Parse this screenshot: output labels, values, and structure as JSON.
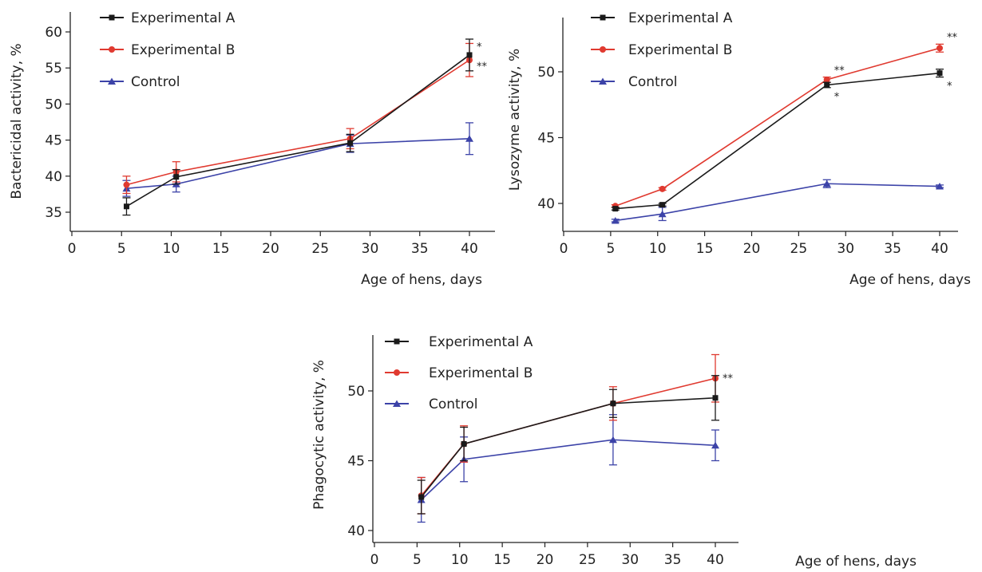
{
  "legend": {
    "series_a": "Experimental A",
    "series_b": "Experimental B",
    "series_c": "Control"
  },
  "colors": {
    "a": "#1a1a1a",
    "b": "#e03a30",
    "c": "#3c43a8"
  },
  "chart_data": [
    {
      "type": "line",
      "title": "",
      "xlabel": "Age of hens, days",
      "ylabel": "Bactericidal activity, %",
      "xlim": [
        0,
        45
      ],
      "ylim": [
        33,
        61
      ],
      "xticks": [
        0,
        5,
        10,
        15,
        20,
        25,
        30,
        35,
        40
      ],
      "yticks": [
        35,
        40,
        45,
        50,
        55,
        60
      ],
      "legend_position": "top-left",
      "x": [
        5.5,
        10.5,
        28,
        40
      ],
      "series": [
        {
          "name": "Experimental A",
          "color": "#1a1a1a",
          "marker": "square",
          "values": [
            35.8,
            39.9,
            44.6,
            56.8
          ],
          "errors": [
            1.2,
            1.0,
            1.2,
            2.2
          ]
        },
        {
          "name": "Experimental B",
          "color": "#e03a30",
          "marker": "circle",
          "values": [
            38.8,
            40.6,
            45.2,
            56.1
          ],
          "errors": [
            1.2,
            1.4,
            1.4,
            2.3
          ]
        },
        {
          "name": "Control",
          "color": "#3c43a8",
          "marker": "triangle",
          "values": [
            38.3,
            38.9,
            44.5,
            45.2
          ],
          "errors": [
            1.1,
            1.1,
            1.2,
            2.2
          ]
        }
      ],
      "annotations": [
        {
          "text": "*",
          "x": 40,
          "y": 57.9
        },
        {
          "text": "**",
          "x": 40,
          "y": 55.2
        }
      ]
    },
    {
      "type": "line",
      "title": "",
      "xlabel": "Age of hens, days",
      "ylabel": "Lysozyme activity, %",
      "xlim": [
        0,
        43
      ],
      "ylim": [
        38,
        54
      ],
      "xticks": [
        0,
        5,
        10,
        15,
        20,
        25,
        30,
        35,
        40
      ],
      "yticks": [
        40,
        45,
        50
      ],
      "legend_position": "top-left",
      "x": [
        5.5,
        10.5,
        28,
        40
      ],
      "series": [
        {
          "name": "Experimental A",
          "color": "#1a1a1a",
          "marker": "square",
          "values": [
            39.6,
            39.9,
            49.0,
            49.9
          ],
          "errors": [
            0.1,
            0.1,
            0.2,
            0.3
          ]
        },
        {
          "name": "Experimental B",
          "color": "#e03a30",
          "marker": "circle",
          "values": [
            39.8,
            41.1,
            49.4,
            51.8
          ],
          "errors": [
            0.1,
            0.1,
            0.2,
            0.3
          ]
        },
        {
          "name": "Control",
          "color": "#3c43a8",
          "marker": "triangle",
          "values": [
            38.7,
            39.2,
            41.5,
            41.3
          ],
          "errors": [
            0.1,
            0.5,
            0.3,
            0.1
          ]
        }
      ],
      "annotations": [
        {
          "text": "**",
          "x": 28,
          "y": 50.1
        },
        {
          "text": "*",
          "x": 28,
          "y": 48.1
        },
        {
          "text": "**",
          "x": 40,
          "y": 52.6
        },
        {
          "text": "*",
          "x": 40,
          "y": 48.9
        }
      ]
    },
    {
      "type": "line",
      "title": "",
      "xlabel": "Age of hens, days",
      "ylabel": "Phagocytic activity, %",
      "xlim": [
        0,
        45
      ],
      "ylim": [
        39.5,
        54
      ],
      "xticks": [
        0,
        5,
        10,
        15,
        20,
        25,
        30,
        35,
        40
      ],
      "yticks": [
        40,
        45,
        50
      ],
      "legend_position": "top-left",
      "x": [
        5.5,
        10.5,
        28,
        40
      ],
      "series": [
        {
          "name": "Experimental A",
          "color": "#1a1a1a",
          "marker": "square",
          "values": [
            42.4,
            46.2,
            49.1,
            49.5
          ],
          "errors": [
            1.2,
            1.2,
            1.0,
            1.6
          ]
        },
        {
          "name": "Experimental B",
          "color": "#e03a30",
          "marker": "circle",
          "values": [
            42.5,
            46.2,
            49.1,
            50.9
          ],
          "errors": [
            1.3,
            1.3,
            1.2,
            1.7
          ]
        },
        {
          "name": "Control",
          "color": "#3c43a8",
          "marker": "triangle",
          "values": [
            42.2,
            45.1,
            46.5,
            46.1
          ],
          "errors": [
            1.6,
            1.6,
            1.8,
            1.1
          ]
        }
      ],
      "annotations": [
        {
          "text": "**",
          "x": 40,
          "y": 50.9
        }
      ]
    }
  ]
}
